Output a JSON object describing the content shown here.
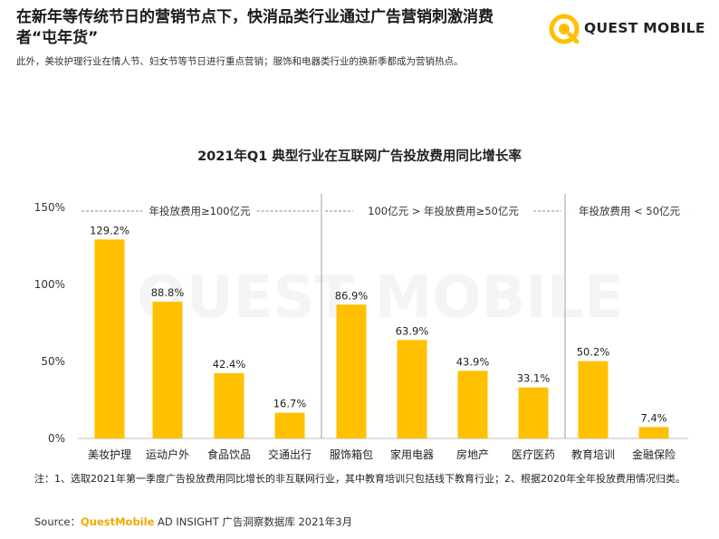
{
  "header": {
    "headline": "在新年等传统节日的营销节点下，快消品类行业通过广告营销刺激消费者“屯年货”",
    "subline": "此外，美妆护理行业在情人节、妇女节等节日进行重点营销；服饰和电器类行业的换新季都成为营销热点。",
    "logo_text": "QUEST MOBILE"
  },
  "watermark": "QUEST MOBILE",
  "chart_data": {
    "type": "bar",
    "title": "2021年Q1 典型行业在互联网广告投放费用同比增长率",
    "categories": [
      "美妆护理",
      "运动户外",
      "食品饮品",
      "交通出行",
      "服饰箱包",
      "家用电器",
      "房地产",
      "医疗医药",
      "教育培训",
      "金融保险"
    ],
    "values": [
      129.2,
      88.8,
      42.4,
      16.7,
      86.9,
      63.9,
      43.9,
      33.1,
      50.2,
      7.4
    ],
    "value_labels": [
      "129.2%",
      "88.8%",
      "42.4%",
      "16.7%",
      "86.9%",
      "63.9%",
      "43.9%",
      "33.1%",
      "50.2%",
      "7.4%"
    ],
    "ylim": [
      0,
      150
    ],
    "yticks": [
      0,
      50,
      100,
      150
    ],
    "ytick_labels": [
      "0%",
      "50%",
      "100%",
      "150%"
    ],
    "grid": false,
    "bar_color": "#ffc000",
    "groups": [
      {
        "label": "年投放费用≥100亿元",
        "start": 0,
        "end": 3
      },
      {
        "label": "100亿元 > 年投放费用≥50亿元",
        "start": 4,
        "end": 7
      },
      {
        "label": "年投放费用 <  50亿元",
        "start": 8,
        "end": 9
      }
    ]
  },
  "footer": {
    "note": "注：1、选取2021年第一季度广告投放费用同比增长的非互联网行业，其中教育培训只包括线下教育行业；2、根据2020年全年投放费用情况归类。",
    "source_prefix": "Source：",
    "source_brand": "QuestMobile",
    "source_rest": " AD INSIGHT 广告洞察数据库 2021年3月"
  },
  "colors": {
    "accent": "#ffc000",
    "brand": "#f2a900",
    "text": "#222222"
  }
}
